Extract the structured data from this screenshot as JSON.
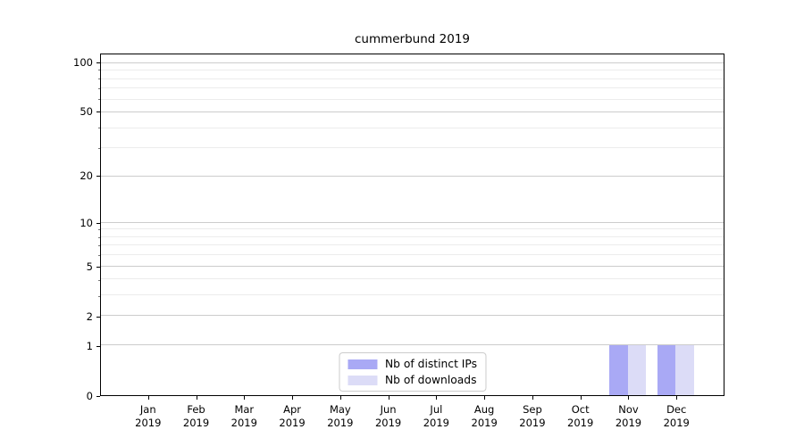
{
  "chart_data": {
    "type": "bar",
    "title": "cummerbund 2019",
    "categories": [
      {
        "month": "Jan",
        "year": "2019"
      },
      {
        "month": "Feb",
        "year": "2019"
      },
      {
        "month": "Mar",
        "year": "2019"
      },
      {
        "month": "Apr",
        "year": "2019"
      },
      {
        "month": "May",
        "year": "2019"
      },
      {
        "month": "Jun",
        "year": "2019"
      },
      {
        "month": "Jul",
        "year": "2019"
      },
      {
        "month": "Aug",
        "year": "2019"
      },
      {
        "month": "Sep",
        "year": "2019"
      },
      {
        "month": "Oct",
        "year": "2019"
      },
      {
        "month": "Nov",
        "year": "2019"
      },
      {
        "month": "Dec",
        "year": "2019"
      }
    ],
    "series": [
      {
        "name": "Nb of distinct IPs",
        "color": "#a9a9f5",
        "values": [
          0,
          0,
          0,
          0,
          0,
          0,
          0,
          0,
          0,
          0,
          1,
          1
        ]
      },
      {
        "name": "Nb of downloads",
        "color": "#dcdcf7",
        "values": [
          0,
          0,
          0,
          0,
          0,
          0,
          0,
          0,
          0,
          0,
          1,
          1
        ]
      }
    ],
    "y_axis": {
      "scale": "log1p",
      "ymax": 113.3,
      "major_ticks": [
        0,
        1,
        2,
        5,
        10,
        20,
        50,
        100
      ],
      "minor_ticks": [
        3,
        4,
        6,
        7,
        8,
        9,
        30,
        40,
        60,
        70,
        80,
        90
      ]
    },
    "grid": {
      "horizontal_major": true,
      "horizontal_minor": true,
      "vertical": false
    },
    "legend_position": "lower center"
  },
  "colors": {
    "background": "#ffffff",
    "spine": "#000000",
    "text": "#000000",
    "major_grid": "#cccccc",
    "minor_grid": "#ececec",
    "bar_distinct_ips": "#a9a9f5",
    "bar_downloads": "#dcdcf7"
  }
}
